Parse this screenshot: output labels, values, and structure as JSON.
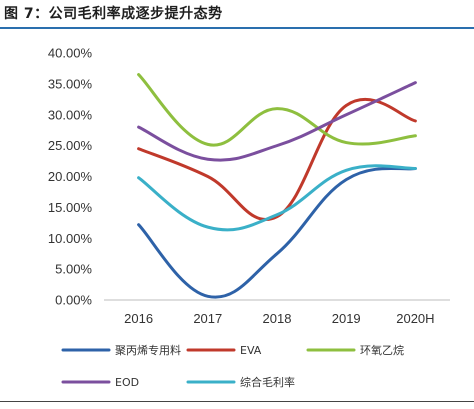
{
  "figure": {
    "title": "图 7：公司毛利率成逐步提升态势"
  },
  "chart_data": {
    "type": "line",
    "title": "",
    "xlabel": "",
    "ylabel": "",
    "categories": [
      "2016",
      "2017",
      "2018",
      "2019",
      "2020H"
    ],
    "ylim": [
      0,
      40
    ],
    "yticks": [
      "0.00%",
      "5.00%",
      "10.00%",
      "15.00%",
      "20.00%",
      "25.00%",
      "30.00%",
      "35.00%",
      "40.00%"
    ],
    "grid": false,
    "smooth": true,
    "legend_position": "bottom",
    "series": [
      {
        "name": "聚丙烯专用料",
        "color": "#2e62a8",
        "values": [
          12.2,
          0.6,
          7.5,
          19.5,
          21.3
        ]
      },
      {
        "name": "EVA",
        "color": "#c0392b",
        "values": [
          24.5,
          20.0,
          13.5,
          31.5,
          29.0
        ]
      },
      {
        "name": "环氧乙烷",
        "color": "#8ebf3f",
        "values": [
          36.5,
          25.2,
          31.0,
          25.5,
          26.6
        ]
      },
      {
        "name": "EOD",
        "color": "#7b4f9e",
        "values": [
          28.0,
          22.8,
          25.0,
          30.0,
          35.2
        ]
      },
      {
        "name": "综合毛利率",
        "color": "#3ab0c8",
        "values": [
          19.8,
          11.8,
          13.8,
          21.0,
          21.3
        ]
      }
    ]
  }
}
